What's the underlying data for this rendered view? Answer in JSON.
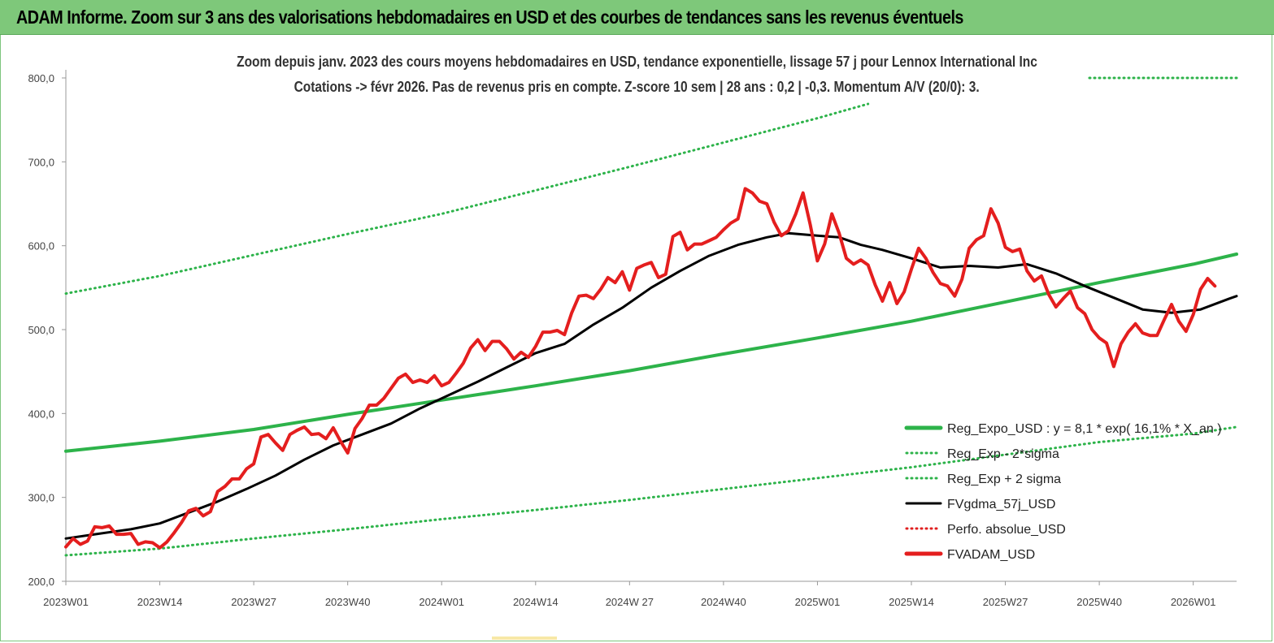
{
  "banner": {
    "title": "ADAM Informe. Zoom sur 3 ans des valorisations hebdomadaires en USD et des courbes de tendances sans les revenus éventuels",
    "color": "#7ec87a"
  },
  "chart_data": {
    "type": "line",
    "title": "Zoom depuis janv. 2023 des cours moyens hebdomadaires en USD, tendance exponentielle, lissage 57 j pour Lennox International Inc",
    "subtitle": "Cotations -> févr 2026. Pas de revenus pris en compte. Z-score 10 sem | 28 ans : 0,2 | -0,3. Momentum A/V (20/0): 3.",
    "xlabel": "",
    "ylabel": "",
    "ylim": [
      200,
      800
    ],
    "xlim": [
      1,
      163
    ],
    "y_ticks": [
      "200,0",
      "300,0",
      "400,0",
      "500,0",
      "600,0",
      "700,0",
      "800,0"
    ],
    "x_ticks": [
      {
        "label": "2023W01",
        "week_index": 1
      },
      {
        "label": "2023W14",
        "week_index": 14
      },
      {
        "label": "2023W27",
        "week_index": 27
      },
      {
        "label": "2023W40",
        "week_index": 40
      },
      {
        "label": "2024W01",
        "week_index": 53
      },
      {
        "label": "2024W14",
        "week_index": 66
      },
      {
        "label": "2024W 27",
        "week_index": 79
      },
      {
        "label": "2024W40",
        "week_index": 92
      },
      {
        "label": "2025W01",
        "week_index": 105
      },
      {
        "label": "2025W14",
        "week_index": 118
      },
      {
        "label": "2025W27",
        "week_index": 131
      },
      {
        "label": "2025W40",
        "week_index": 144
      },
      {
        "label": "2026W01",
        "week_index": 157
      }
    ],
    "grid": false,
    "legend_position": "bottom-right",
    "series": [
      {
        "name": "Reg_Expo_USD : y = 8,1  * exp( 16,1% *  X_an )",
        "style": "solid-thick",
        "color": "#2db34a",
        "points": [
          [
            1,
            355
          ],
          [
            14,
            367
          ],
          [
            27,
            381
          ],
          [
            40,
            399
          ],
          [
            53,
            416
          ],
          [
            66,
            433
          ],
          [
            79,
            451
          ],
          [
            92,
            471
          ],
          [
            105,
            490
          ],
          [
            118,
            510
          ],
          [
            131,
            533
          ],
          [
            144,
            556
          ],
          [
            157,
            578
          ],
          [
            163,
            590
          ]
        ]
      },
      {
        "name": "Reg_Exp - 2*sigma",
        "style": "dotted",
        "color": "#2db34a",
        "points": [
          [
            1,
            231
          ],
          [
            14,
            239
          ],
          [
            27,
            251
          ],
          [
            40,
            262
          ],
          [
            53,
            274
          ],
          [
            66,
            285
          ],
          [
            79,
            297
          ],
          [
            92,
            310
          ],
          [
            105,
            323
          ],
          [
            118,
            336
          ],
          [
            131,
            351
          ],
          [
            144,
            366
          ],
          [
            157,
            376
          ],
          [
            163,
            384
          ]
        ]
      },
      {
        "name": "Reg_Exp + 2 sigma",
        "style": "dotted",
        "color": "#2db34a",
        "points": [
          [
            1,
            543
          ],
          [
            14,
            564
          ],
          [
            27,
            589
          ],
          [
            40,
            614
          ],
          [
            53,
            638
          ],
          [
            66,
            666
          ],
          [
            79,
            694
          ],
          [
            92,
            723
          ],
          [
            105,
            752
          ],
          [
            112,
            769
          ]
        ]
      },
      {
        "name": "FVgdma_57j_USD",
        "style": "solid",
        "color": "#000000",
        "points": [
          [
            1,
            251
          ],
          [
            5,
            256
          ],
          [
            10,
            262
          ],
          [
            14,
            269
          ],
          [
            18,
            282
          ],
          [
            22,
            295
          ],
          [
            26,
            310
          ],
          [
            30,
            326
          ],
          [
            34,
            345
          ],
          [
            38,
            362
          ],
          [
            42,
            375
          ],
          [
            46,
            388
          ],
          [
            50,
            406
          ],
          [
            54,
            422
          ],
          [
            58,
            438
          ],
          [
            62,
            455
          ],
          [
            66,
            472
          ],
          [
            70,
            483
          ],
          [
            74,
            506
          ],
          [
            78,
            526
          ],
          [
            82,
            550
          ],
          [
            86,
            570
          ],
          [
            90,
            588
          ],
          [
            94,
            601
          ],
          [
            98,
            610
          ],
          [
            101,
            615
          ],
          [
            105,
            612
          ],
          [
            108,
            610
          ],
          [
            111,
            601
          ],
          [
            114,
            595
          ],
          [
            118,
            585
          ],
          [
            122,
            574
          ],
          [
            126,
            576
          ],
          [
            130,
            574
          ],
          [
            134,
            578
          ],
          [
            138,
            567
          ],
          [
            142,
            552
          ],
          [
            146,
            538
          ],
          [
            150,
            524
          ],
          [
            154,
            520
          ],
          [
            158,
            524
          ],
          [
            162,
            537
          ],
          [
            163,
            540
          ]
        ]
      },
      {
        "name": "Perfo. absolue_USD",
        "style": "dotted",
        "color": "#e02020",
        "points": []
      },
      {
        "name": "FVADAM_USD",
        "style": "solid-thick",
        "color": "#e41e1e",
        "points": [
          [
            1,
            241
          ],
          [
            2,
            251
          ],
          [
            3,
            244
          ],
          [
            4,
            248
          ],
          [
            5,
            265
          ],
          [
            6,
            264
          ],
          [
            7,
            266
          ],
          [
            8,
            256
          ],
          [
            9,
            256
          ],
          [
            10,
            257
          ],
          [
            11,
            244
          ],
          [
            12,
            247
          ],
          [
            13,
            246
          ],
          [
            14,
            240
          ],
          [
            15,
            247
          ],
          [
            16,
            258
          ],
          [
            17,
            270
          ],
          [
            18,
            284
          ],
          [
            19,
            287
          ],
          [
            20,
            278
          ],
          [
            21,
            283
          ],
          [
            22,
            307
          ],
          [
            23,
            313
          ],
          [
            24,
            322
          ],
          [
            25,
            322
          ],
          [
            26,
            334
          ],
          [
            27,
            340
          ],
          [
            28,
            372
          ],
          [
            29,
            375
          ],
          [
            30,
            365
          ],
          [
            31,
            356
          ],
          [
            32,
            375
          ],
          [
            33,
            380
          ],
          [
            34,
            384
          ],
          [
            35,
            375
          ],
          [
            36,
            376
          ],
          [
            37,
            370
          ],
          [
            38,
            383
          ],
          [
            39,
            367
          ],
          [
            40,
            353
          ],
          [
            41,
            382
          ],
          [
            42,
            394
          ],
          [
            43,
            410
          ],
          [
            44,
            410
          ],
          [
            45,
            418
          ],
          [
            46,
            430
          ],
          [
            47,
            442
          ],
          [
            48,
            447
          ],
          [
            49,
            437
          ],
          [
            50,
            440
          ],
          [
            51,
            437
          ],
          [
            52,
            445
          ],
          [
            53,
            433
          ],
          [
            54,
            437
          ],
          [
            55,
            448
          ],
          [
            56,
            460
          ],
          [
            57,
            478
          ],
          [
            58,
            488
          ],
          [
            59,
            475
          ],
          [
            60,
            486
          ],
          [
            61,
            486
          ],
          [
            62,
            477
          ],
          [
            63,
            465
          ],
          [
            64,
            473
          ],
          [
            65,
            467
          ],
          [
            66,
            480
          ],
          [
            67,
            497
          ],
          [
            68,
            497
          ],
          [
            69,
            499
          ],
          [
            70,
            494
          ],
          [
            71,
            520
          ],
          [
            72,
            540
          ],
          [
            73,
            541
          ],
          [
            74,
            537
          ],
          [
            75,
            548
          ],
          [
            76,
            562
          ],
          [
            77,
            556
          ],
          [
            78,
            569
          ],
          [
            79,
            547
          ],
          [
            80,
            573
          ],
          [
            81,
            577
          ],
          [
            82,
            580
          ],
          [
            83,
            562
          ],
          [
            84,
            566
          ],
          [
            85,
            611
          ],
          [
            86,
            616
          ],
          [
            87,
            595
          ],
          [
            88,
            602
          ],
          [
            89,
            602
          ],
          [
            90,
            606
          ],
          [
            91,
            610
          ],
          [
            92,
            619
          ],
          [
            93,
            627
          ],
          [
            94,
            632
          ],
          [
            95,
            668
          ],
          [
            96,
            663
          ],
          [
            97,
            653
          ],
          [
            98,
            650
          ],
          [
            99,
            628
          ],
          [
            100,
            612
          ],
          [
            101,
            618
          ],
          [
            102,
            638
          ],
          [
            103,
            663
          ],
          [
            104,
            625
          ],
          [
            105,
            582
          ],
          [
            106,
            602
          ],
          [
            107,
            638
          ],
          [
            108,
            615
          ],
          [
            109,
            585
          ],
          [
            110,
            578
          ],
          [
            111,
            583
          ],
          [
            112,
            577
          ],
          [
            113,
            553
          ],
          [
            114,
            534
          ],
          [
            115,
            556
          ],
          [
            116,
            531
          ],
          [
            117,
            545
          ],
          [
            118,
            572
          ],
          [
            119,
            597
          ],
          [
            120,
            585
          ],
          [
            121,
            568
          ],
          [
            122,
            555
          ],
          [
            123,
            552
          ],
          [
            124,
            540
          ],
          [
            125,
            560
          ],
          [
            126,
            597
          ],
          [
            127,
            607
          ],
          [
            128,
            612
          ],
          [
            129,
            644
          ],
          [
            130,
            627
          ],
          [
            131,
            598
          ],
          [
            132,
            593
          ],
          [
            133,
            596
          ],
          [
            134,
            570
          ],
          [
            135,
            558
          ],
          [
            136,
            564
          ],
          [
            137,
            542
          ],
          [
            138,
            527
          ],
          [
            139,
            537
          ],
          [
            140,
            546
          ],
          [
            141,
            526
          ],
          [
            142,
            519
          ],
          [
            143,
            500
          ],
          [
            144,
            490
          ],
          [
            145,
            484
          ],
          [
            146,
            456
          ],
          [
            147,
            483
          ],
          [
            148,
            497
          ],
          [
            149,
            507
          ],
          [
            150,
            496
          ],
          [
            151,
            493
          ],
          [
            152,
            493
          ],
          [
            153,
            512
          ],
          [
            154,
            530
          ],
          [
            155,
            510
          ],
          [
            156,
            498
          ],
          [
            157,
            518
          ],
          [
            158,
            548
          ],
          [
            159,
            561
          ],
          [
            160,
            552
          ]
        ]
      }
    ]
  }
}
